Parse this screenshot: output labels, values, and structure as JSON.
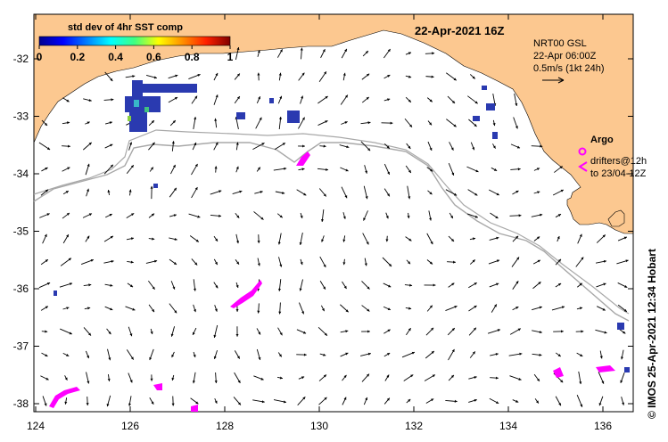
{
  "map": {
    "date_label": "22-Apr-2021 16Z",
    "lon_ticks": [
      "124",
      "126",
      "128",
      "130",
      "132",
      "134",
      "136"
    ],
    "lat_ticks": [
      "-32",
      "-33",
      "-34",
      "-35",
      "-36",
      "-37",
      "-38"
    ]
  },
  "colorbar": {
    "title": "std dev of 4hr SST comp",
    "ticks": [
      "0",
      "0.2",
      "0.4",
      "0.6",
      "0.8",
      "1"
    ]
  },
  "velocity_legend": {
    "product": "NRT00 GSL",
    "time": "22-Apr 06:00Z",
    "scale": "0.5m/s (1kt 24h)"
  },
  "argo_legend": {
    "label": "Argo",
    "drifters_line1": "drifters@12h",
    "drifters_line2": "to 23/04-12Z"
  },
  "credit": "© IMOS 25-Apr-2021 12:34 Hobart",
  "colors": {
    "land": "#fcc890",
    "drifter": "#ff00ff",
    "isobath": "#a8a8a8",
    "sst_patch": "#2a3ab0"
  }
}
